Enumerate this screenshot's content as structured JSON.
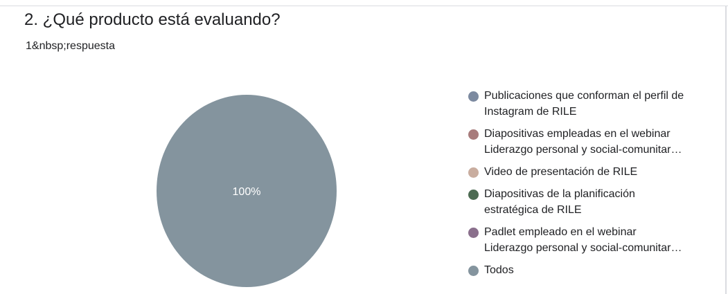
{
  "question": {
    "title": "2. ¿Qué producto está evaluando?",
    "response_count": "1&nbsp;respuesta"
  },
  "chart_data": {
    "type": "pie",
    "title": "2. ¿Qué producto está evaluando?",
    "slices": [
      {
        "label": "Publicaciones que conforman el perfil de Instagram de RILE",
        "value": 0,
        "color": "#7c8aa0"
      },
      {
        "label": "Diapositivas empleadas en el webinar Liderazgo personal y social-comunitar…",
        "value": 0,
        "color": "#a87c7c"
      },
      {
        "label": "Video de presentación de RILE",
        "value": 0,
        "color": "#c9ad9f"
      },
      {
        "label": "Diapositivas de la planificación estratégica de RILE",
        "value": 0,
        "color": "#4d6b52"
      },
      {
        "label": "Padlet empleado en el webinar Liderazgo personal y social-comunitar…",
        "value": 0,
        "color": "#8a6f8c"
      },
      {
        "label": "Todos",
        "value": 100,
        "color": "#84949e"
      }
    ],
    "data_labels": [
      "100%"
    ],
    "legend": "right"
  },
  "legend_lines": [
    [
      "Publicaciones que conforman el perfil de",
      "Instagram de RILE"
    ],
    [
      "Diapositivas empleadas en el webinar",
      "Liderazgo personal y social-comunitar…"
    ],
    [
      "Video de presentación de RILE"
    ],
    [
      "Diapositivas de la planificación",
      "estratégica de RILE"
    ],
    [
      "Padlet empleado en el webinar",
      "Liderazgo personal y social-comunitar…"
    ],
    [
      "Todos"
    ]
  ]
}
